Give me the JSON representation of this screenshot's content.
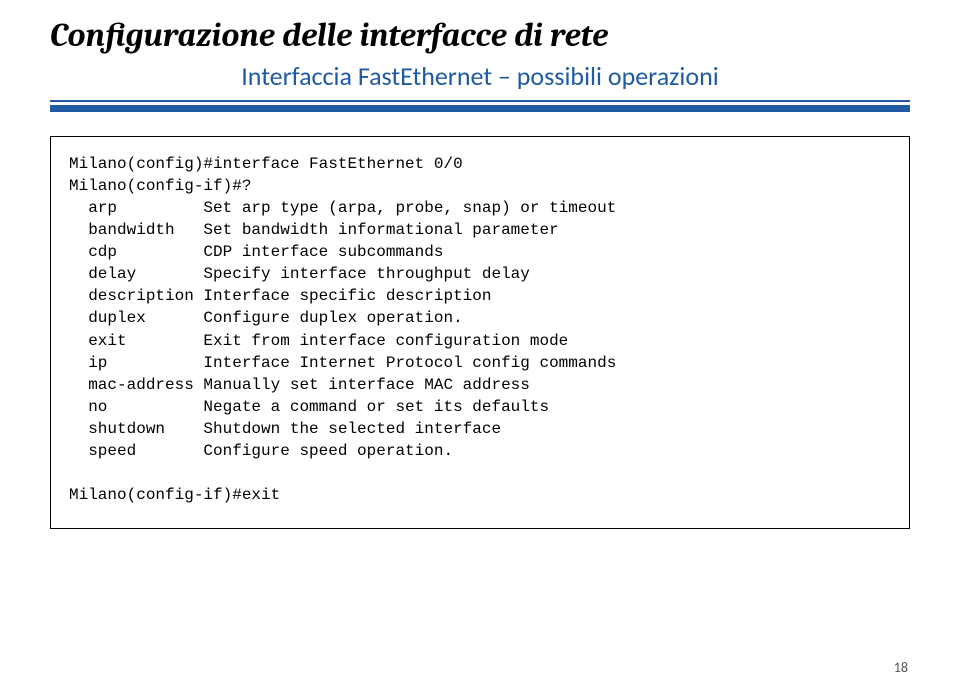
{
  "title": "Configurazione delle interfacce di rete",
  "subtitle": "Interfaccia FastEthernet – possibili operazioni",
  "code": {
    "prompt1": "Milano(config)#interface FastEthernet 0/0",
    "prompt2": "Milano(config-if)#?",
    "entries": [
      {
        "cmd": "arp",
        "desc": "Set arp type (arpa, probe, snap) or timeout"
      },
      {
        "cmd": "bandwidth",
        "desc": "Set bandwidth informational parameter"
      },
      {
        "cmd": "cdp",
        "desc": "CDP interface subcommands"
      },
      {
        "cmd": "delay",
        "desc": "Specify interface throughput delay"
      },
      {
        "cmd": "description",
        "desc": "Interface specific description"
      },
      {
        "cmd": "duplex",
        "desc": "Configure duplex operation."
      },
      {
        "cmd": "exit",
        "desc": "Exit from interface configuration mode"
      },
      {
        "cmd": "ip",
        "desc": "Interface Internet Protocol config commands"
      },
      {
        "cmd": "mac-address",
        "desc": "Manually set interface MAC address"
      },
      {
        "cmd": "no",
        "desc": "Negate a command or set its defaults"
      },
      {
        "cmd": "shutdown",
        "desc": "Shutdown the selected interface"
      },
      {
        "cmd": "speed",
        "desc": "Configure speed operation."
      }
    ],
    "prompt3": "Milano(config-if)#exit"
  },
  "pageNumber": "18",
  "colors": {
    "accent": "#1f5aa3",
    "text": "#000000",
    "pageNum": "#555555",
    "background": "#ffffff"
  },
  "layout": {
    "cmdColumnWidth": 12,
    "leftIndent": "  "
  }
}
